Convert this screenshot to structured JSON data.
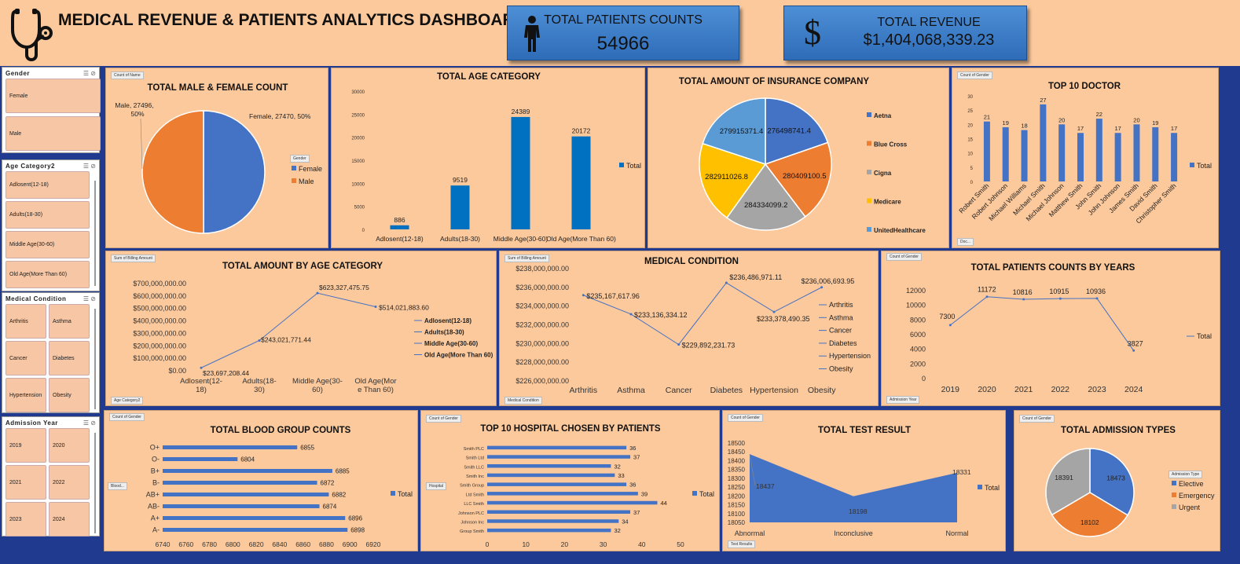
{
  "header": {
    "title": "MEDICAL REVENUE & PATIENTS ANALYTICS DASHBOARD",
    "kpi_patients_label": "TOTAL PATIENTS COUNTS",
    "kpi_patients_value": "54966",
    "kpi_revenue_label": "TOTAL REVENUE",
    "kpi_revenue_value": "$1,404,068,339.23"
  },
  "colors": {
    "blue": "#4472c4",
    "orange": "#ed7d31",
    "gray": "#a5a5a5",
    "yellow": "#ffc000",
    "lightblue": "#5b9bd5",
    "bar_blue": "#0070c0",
    "bg": "#fcc99c"
  },
  "slicers": {
    "gender": {
      "title": "Gender",
      "items": [
        "Female",
        "Male"
      ]
    },
    "age": {
      "title": "Age Category2",
      "items": [
        "Adlosent(12-18)",
        "Adults(18-30)",
        "Middle Age(30-60)",
        "Old Age(More Than 60)"
      ]
    },
    "condition": {
      "title": "Medical Condition",
      "items": [
        "Arthritis",
        "Asthma",
        "Cancer",
        "Diabetes",
        "Hypertension",
        "Obesity"
      ]
    },
    "year": {
      "title": "Admission Year",
      "items": [
        "2019",
        "2020",
        "2021",
        "2022",
        "2023",
        "2024"
      ]
    }
  },
  "tags": {
    "count_name": "Count of Name",
    "count_gender": "Count of Gender",
    "sum_billing": "Sum of Billing Amount",
    "gender_filter": "Gender",
    "age_filter": "Age Category2",
    "doc_filter": "Doc...",
    "condition_filter": "Medical Condition",
    "year_filter": "Admission Year",
    "blood_filter": "Blood...",
    "hospital_filter": "Hospital",
    "test_filter": "Test Results",
    "admission_filter": "Admission Type"
  },
  "chart_data": [
    {
      "id": "gender",
      "type": "pie",
      "title": "TOTAL MALE & FEMALE COUNT",
      "labels": [
        "Female",
        "Male"
      ],
      "values": [
        27470,
        27496
      ],
      "data_labels": [
        "Female, 27470, 50%",
        "Male, 27496, 50%"
      ],
      "legend": "right"
    },
    {
      "id": "age",
      "type": "bar",
      "title": "TOTAL AGE CATEGORY",
      "categories": [
        "Adlosent(12-18)",
        "Adults(18-30)",
        "Middle Age(30-60)",
        "Old Age(More Than 60)"
      ],
      "values": [
        886,
        9519,
        24389,
        20172
      ],
      "ylim": [
        0,
        30000
      ],
      "yticks": [
        "0",
        "5000",
        "10000",
        "15000",
        "20000",
        "25000",
        "30000"
      ],
      "series": [
        {
          "name": "Total"
        }
      ],
      "legend": "right"
    },
    {
      "id": "insurance",
      "type": "pie",
      "title": "TOTAL AMOUNT OF INSURANCE COMPANY",
      "labels": [
        "Aetna",
        "Blue Cross",
        "Cigna",
        "Medicare",
        "UnitedHealthcare"
      ],
      "values": [
        276498741.4,
        280409100.5,
        284334099.2,
        282911026.8,
        279915371.4
      ],
      "data_labels": [
        "276498741.4",
        "280409100.5",
        "284334099.2",
        "282911026.8",
        "279915371.4"
      ],
      "legend": "right"
    },
    {
      "id": "doctor",
      "type": "bar",
      "title": "TOP 10 DOCTOR",
      "categories": [
        "Robert Smith",
        "Robert Johnson",
        "Michael Williams",
        "Michael Smith",
        "Michael Johnson",
        "Matthew Smith",
        "John Smith",
        "John Johnson",
        "James Smith",
        "David Smith",
        "Christopher Smith"
      ],
      "values": [
        21,
        19,
        18,
        27,
        20,
        17,
        22,
        17,
        20,
        19,
        17
      ],
      "ylim": [
        0,
        30
      ],
      "yticks": [
        "0",
        "5",
        "10",
        "15",
        "20",
        "25",
        "30"
      ],
      "series": [
        {
          "name": "Total"
        }
      ],
      "legend": "right"
    },
    {
      "id": "amount_age",
      "type": "line",
      "title": "TOTAL AMOUNT BY AGE CATEGORY",
      "categories": [
        "Adlosent(12-18)",
        "Adults(18-30)",
        "Middle Age(30-60)",
        "Old Age(More Than 60)"
      ],
      "values": [
        23697208.44,
        243021771.44,
        623327475.75,
        514021883.6
      ],
      "data_labels": [
        "$23,697,208.44",
        "$243,021,771.44",
        "$623,327,475.75",
        "$514,021,883.60"
      ],
      "ylim": [
        0,
        700000000
      ],
      "yticks": [
        "$0.00",
        "$100,000,000.00",
        "$200,000,000.00",
        "$300,000,000.00",
        "$400,000,000.00",
        "$500,000,000.00",
        "$600,000,000.00",
        "$700,000,000.00"
      ],
      "legend_entries": [
        "Adlosent(12-18)",
        "Adults(18-30)",
        "Middle Age(30-60)",
        "Old Age(More Than 60)"
      ],
      "legend": "right"
    },
    {
      "id": "condition",
      "type": "line",
      "title": "MEDICAL CONDITION",
      "categories": [
        "Arthritis",
        "Asthma",
        "Cancer",
        "Diabetes",
        "Hypertension",
        "Obesity"
      ],
      "values": [
        235167617.96,
        233136334.12,
        229892231.73,
        236486971.11,
        233378490.35,
        236006693.95
      ],
      "data_labels": [
        "$235,167,617.96",
        "$233,136,334.12",
        "$229,892,231.73",
        "$236,486,971.11",
        "$233,378,490.35",
        "$236,006,693.95"
      ],
      "ylim": [
        226000000,
        238000000
      ],
      "yticks": [
        "$226,000,000.00",
        "$228,000,000.00",
        "$230,000,000.00",
        "$232,000,000.00",
        "$234,000,000.00",
        "$236,000,000.00",
        "$238,000,000.00"
      ],
      "legend_entries": [
        "Arthritis",
        "Asthma",
        "Cancer",
        "Diabetes",
        "Hypertension",
        "Obesity"
      ],
      "legend": "right"
    },
    {
      "id": "years",
      "type": "line",
      "title": "TOTAL PATIENTS COUNTS BY YEARS",
      "categories": [
        "2019",
        "2020",
        "2021",
        "2022",
        "2023",
        "2024"
      ],
      "values": [
        7300,
        11172,
        10816,
        10915,
        10936,
        3827
      ],
      "ylim": [
        0,
        12000
      ],
      "yticks": [
        "0",
        "2000",
        "4000",
        "6000",
        "8000",
        "10000",
        "12000"
      ],
      "series": [
        {
          "name": "Total"
        }
      ],
      "legend": "right"
    },
    {
      "id": "blood",
      "type": "bar",
      "orientation": "horizontal",
      "title": "TOTAL BLOOD GROUP COUNTS",
      "categories": [
        "O+",
        "O-",
        "B+",
        "B-",
        "AB+",
        "AB-",
        "A+",
        "A-"
      ],
      "values": [
        6855,
        6804,
        6885,
        6872,
        6882,
        6874,
        6896,
        6898
      ],
      "xlim": [
        6740,
        6920
      ],
      "xticks": [
        "6740",
        "6760",
        "6780",
        "6800",
        "6820",
        "6840",
        "6860",
        "6880",
        "6900",
        "6920"
      ],
      "series": [
        {
          "name": "Total"
        }
      ],
      "legend": "right"
    },
    {
      "id": "hospital",
      "type": "bar",
      "orientation": "horizontal",
      "title": "TOP 10 HOSPITAL CHOSEN BY PATIENTS",
      "categories": [
        "Smith PLC",
        "Smith Ltd",
        "Smith LLC",
        "Smith Inc",
        "Smith Group",
        "Ltd Smith",
        "LLC Smith",
        "Johnson PLC",
        "Johnson Inc",
        "Group Smith"
      ],
      "values": [
        36,
        37,
        32,
        33,
        36,
        39,
        44,
        37,
        34,
        32
      ],
      "xlim": [
        0,
        50
      ],
      "xticks": [
        "0",
        "10",
        "20",
        "30",
        "40",
        "50"
      ],
      "series": [
        {
          "name": "Total"
        }
      ],
      "legend": "right"
    },
    {
      "id": "test",
      "type": "area",
      "title": "TOTAL TEST RESULT",
      "categories": [
        "Abnormal",
        "Inconclusive",
        "Normal"
      ],
      "values": [
        18437,
        18198,
        18331
      ],
      "ylim": [
        18050,
        18500
      ],
      "yticks": [
        "18050",
        "18100",
        "18150",
        "18200",
        "18250",
        "18300",
        "18350",
        "18400",
        "18450",
        "18500"
      ],
      "series": [
        {
          "name": "Total"
        }
      ],
      "legend": "right"
    },
    {
      "id": "admission",
      "type": "pie",
      "title": "TOTAL ADMISSION TYPES",
      "labels": [
        "Elective",
        "Emergency",
        "Urgent"
      ],
      "values": [
        18473,
        18102,
        18391
      ],
      "data_labels": [
        "18473",
        "18102",
        "18391"
      ],
      "legend": "right"
    }
  ]
}
